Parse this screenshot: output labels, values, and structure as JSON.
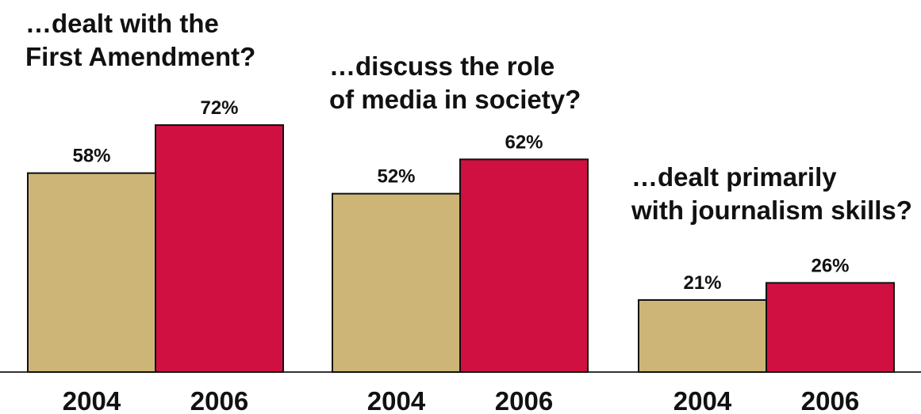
{
  "chart_data": {
    "type": "bar",
    "title": "",
    "xlabel": "",
    "ylabel": "",
    "ylim": [
      0,
      72
    ],
    "grid": false,
    "legend": "none",
    "colors": {
      "2004": "#CDB577",
      "2006": "#D01040",
      "outline": "#111111",
      "baseline": "#333333"
    },
    "groups": [
      {
        "title_lines": [
          "…dealt with the",
          "First Amendment?"
        ],
        "bars": [
          {
            "x": "2004",
            "value": 58,
            "label": "58%"
          },
          {
            "x": "2006",
            "value": 72,
            "label": "72%"
          }
        ]
      },
      {
        "title_lines": [
          "…discuss the role",
          "of media in society?"
        ],
        "bars": [
          {
            "x": "2004",
            "value": 52,
            "label": "52%"
          },
          {
            "x": "2006",
            "value": 62,
            "label": "62%"
          }
        ]
      },
      {
        "title_lines": [
          "…dealt primarily",
          "with journalism skills?"
        ],
        "bars": [
          {
            "x": "2004",
            "value": 21,
            "label": "21%"
          },
          {
            "x": "2006",
            "value": 26,
            "label": "26%"
          }
        ]
      }
    ]
  }
}
